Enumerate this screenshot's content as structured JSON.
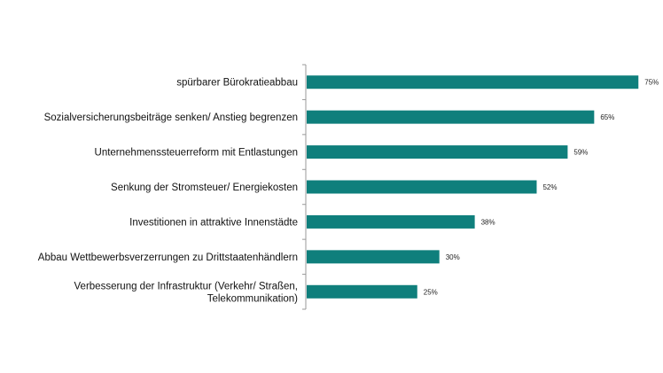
{
  "chart_data": {
    "type": "bar",
    "orientation": "horizontal",
    "title": "",
    "xlabel": "",
    "ylabel": "",
    "xlim": [
      0,
      100
    ],
    "grid": false,
    "bar_color": "#0f7f7c",
    "categories": [
      [
        "spürbarer Bürokratieabbau"
      ],
      [
        "Sozialversicherungsbeiträge senken/ Anstieg begrenzen"
      ],
      [
        "Unternehmenssteuerreform mit Entlastungen"
      ],
      [
        "Senkung der Stromsteuer/ Energiekosten"
      ],
      [
        "Investitionen in attraktive Innenstädte"
      ],
      [
        "Abbau Wettbewerbsverzerrungen zu Drittstaatenhändlern"
      ],
      [
        "Verbesserung der Infrastruktur (Verkehr/ Straßen,",
        "Telekommunikation)"
      ]
    ],
    "values": [
      75,
      65,
      59,
      52,
      38,
      30,
      25
    ],
    "value_labels": [
      "75%",
      "65%",
      "59%",
      "52%",
      "38%",
      "30%",
      "25%"
    ]
  }
}
